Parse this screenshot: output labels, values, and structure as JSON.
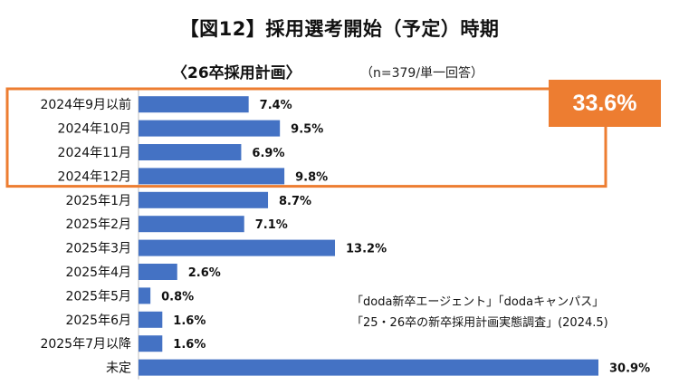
{
  "title": "【図12】採用選考開始（予定）時期",
  "subtitle": "〈26卒採用計画〉",
  "sample_note": "（n=379/単一回答）",
  "highlight": {
    "label": "33.6%",
    "color": "#ED7D31",
    "covers_categories": [
      "2024年9月以前",
      "2024年10月",
      "2024年11月",
      "2024年12月"
    ]
  },
  "source_lines": [
    "「doda新卒エージェント」「dodaキャンパス」",
    "「25・26卒の新卒採用計画実態調査」(2024.5)"
  ],
  "chart_data": {
    "type": "bar",
    "orientation": "horizontal",
    "categories": [
      "2024年9月以前",
      "2024年10月",
      "2024年11月",
      "2024年12月",
      "2025年1月",
      "2025年2月",
      "2025年3月",
      "2025年4月",
      "2025年5月",
      "2025年6月",
      "2025年7月以降",
      "未定"
    ],
    "values": [
      7.4,
      9.5,
      6.9,
      9.8,
      8.7,
      7.1,
      13.2,
      2.6,
      0.8,
      1.6,
      1.6,
      30.9
    ],
    "value_labels": [
      "7.4%",
      "9.5%",
      "6.9%",
      "9.8%",
      "8.7%",
      "7.1%",
      "13.2%",
      "2.6%",
      "0.8%",
      "1.6%",
      "1.6%",
      "30.9%"
    ],
    "unit": "%",
    "bar_color": "#4472C4",
    "xlim": [
      0,
      30.9
    ],
    "grid": false,
    "legend": "none"
  }
}
